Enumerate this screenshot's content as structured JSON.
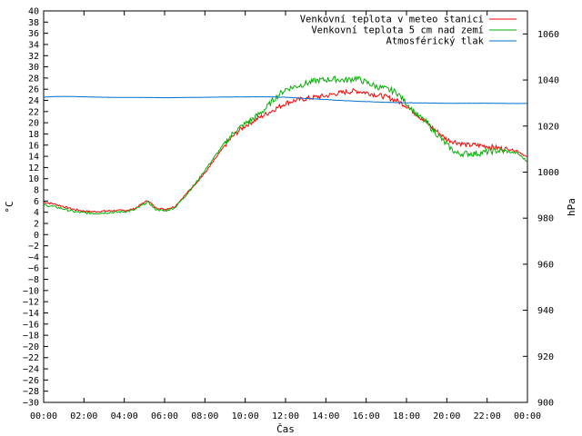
{
  "chart_data": {
    "type": "line",
    "xlabel": "Čas",
    "ylabel_left": "°C",
    "ylabel_right": "hPa",
    "xlim": [
      0,
      24
    ],
    "ylim_left": [
      -30,
      40
    ],
    "ylim_right": [
      900,
      1070
    ],
    "x_ticks": [
      "00:00",
      "02:00",
      "04:00",
      "06:00",
      "08:00",
      "10:00",
      "12:00",
      "14:00",
      "16:00",
      "18:00",
      "20:00",
      "22:00",
      "00:00"
    ],
    "y_left_ticks": [
      -30,
      -28,
      -26,
      -24,
      -22,
      -20,
      -18,
      -16,
      -14,
      -12,
      -10,
      -8,
      -6,
      -4,
      -2,
      0,
      2,
      4,
      6,
      8,
      10,
      12,
      14,
      16,
      18,
      20,
      22,
      24,
      26,
      28,
      30,
      32,
      34,
      36,
      38,
      40
    ],
    "y_right_ticks": [
      900,
      920,
      940,
      960,
      980,
      1000,
      1020,
      1040,
      1060
    ],
    "grid": false,
    "legend_position": "top-right",
    "series": [
      {
        "name": "Venkovní teplota v meteo stanici",
        "color": "#ff0000",
        "axis": "left",
        "x": [
          0,
          0.5,
          1,
          1.5,
          2,
          2.5,
          3,
          3.5,
          4,
          4.5,
          5,
          5.2,
          5.5,
          6,
          6.5,
          7,
          7.5,
          8,
          8.5,
          9,
          9.5,
          10,
          10.5,
          11,
          11.5,
          12,
          12.5,
          13,
          13.5,
          14,
          14.5,
          15,
          15.5,
          16,
          16.5,
          17,
          17.5,
          18,
          18.5,
          19,
          19.5,
          20,
          20.5,
          21,
          21.5,
          22,
          22.5,
          23,
          23.5,
          24
        ],
        "y": [
          5.8,
          5.5,
          5.0,
          4.5,
          4.2,
          4.1,
          4.2,
          4.3,
          4.3,
          4.6,
          5.8,
          6.1,
          4.9,
          4.5,
          5.0,
          7.0,
          9.0,
          11.0,
          13.5,
          16.0,
          18.0,
          19.5,
          20.5,
          21.5,
          22.5,
          23.5,
          24.0,
          24.3,
          24.6,
          24.8,
          25.2,
          25.5,
          25.7,
          25.4,
          25.0,
          24.6,
          24.0,
          23.0,
          21.5,
          20.0,
          18.5,
          17.0,
          16.5,
          16.0,
          16.0,
          15.8,
          15.5,
          15.3,
          15.0,
          13.8
        ]
      },
      {
        "name": "Venkovní teplota 5 cm nad zemí",
        "color": "#00b000",
        "axis": "left",
        "x": [
          0,
          0.5,
          1,
          1.5,
          2,
          2.5,
          3,
          3.5,
          4,
          4.5,
          5,
          5.2,
          5.5,
          6,
          6.5,
          7,
          7.5,
          8,
          8.5,
          9,
          9.5,
          10,
          10.5,
          11,
          11.5,
          12,
          12.5,
          13,
          13.5,
          14,
          14.5,
          15,
          15.5,
          16,
          16.5,
          17,
          17.5,
          18,
          18.5,
          19,
          19.5,
          20,
          20.5,
          21,
          21.5,
          22,
          22.5,
          23,
          23.5,
          24
        ],
        "y": [
          5.3,
          5.0,
          4.6,
          4.1,
          3.9,
          3.8,
          3.9,
          4.0,
          4.1,
          4.4,
          5.5,
          5.8,
          4.6,
          4.2,
          4.8,
          6.8,
          9.0,
          11.5,
          14.0,
          16.5,
          18.5,
          19.8,
          21.0,
          22.5,
          24.5,
          26.0,
          26.5,
          27.0,
          27.5,
          27.7,
          27.8,
          27.6,
          28.0,
          27.2,
          26.5,
          26.0,
          25.5,
          23.5,
          21.5,
          20.0,
          18.0,
          16.0,
          14.5,
          14.5,
          14.5,
          14.8,
          15.0,
          14.8,
          14.6,
          13.0
        ]
      },
      {
        "name": "Atmosférický tlak",
        "color": "#0070d0",
        "axis": "right",
        "x": [
          0,
          0.5,
          1,
          2,
          3,
          4,
          5,
          6,
          7,
          8,
          9,
          10,
          11,
          12,
          13,
          14,
          15,
          16,
          17,
          18,
          19,
          20,
          21,
          22,
          23,
          24
        ],
        "y": [
          1032.5,
          1032.8,
          1032.9,
          1032.7,
          1032.5,
          1032.4,
          1032.4,
          1032.3,
          1032.4,
          1032.5,
          1032.6,
          1032.7,
          1032.7,
          1032.5,
          1032.0,
          1031.5,
          1031.0,
          1030.6,
          1030.3,
          1030.1,
          1030.0,
          1029.9,
          1029.9,
          1029.9,
          1029.8,
          1029.8
        ]
      }
    ]
  }
}
